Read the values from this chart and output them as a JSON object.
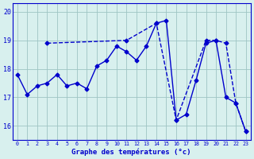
{
  "xlabel": "Graphe des températures (°c)",
  "hours": [
    0,
    1,
    2,
    3,
    4,
    5,
    6,
    7,
    8,
    9,
    10,
    11,
    12,
    13,
    14,
    15,
    16,
    17,
    18,
    19,
    20,
    21,
    22,
    23
  ],
  "line1_x": [
    0,
    1,
    2,
    3,
    4,
    5,
    6,
    7,
    8,
    9,
    10,
    11,
    12,
    13,
    14,
    15,
    16,
    17,
    18,
    19,
    20,
    21,
    22,
    23
  ],
  "line1_y": [
    17.8,
    17.1,
    17.4,
    17.5,
    17.8,
    17.4,
    17.5,
    17.3,
    18.1,
    18.3,
    18.8,
    18.6,
    18.3,
    18.8,
    19.6,
    19.7,
    16.2,
    16.4,
    17.6,
    18.9,
    19.0,
    17.0,
    16.8,
    15.8
  ],
  "line2_x": [
    3,
    11,
    14,
    16,
    19,
    20,
    21,
    22,
    23
  ],
  "line2_y": [
    18.9,
    19.0,
    19.6,
    16.2,
    19.0,
    19.0,
    18.9,
    16.8,
    15.8
  ],
  "line_color": "#0000cc",
  "bg_color": "#d8f0ee",
  "grid_color": "#9ec4c4",
  "ylim": [
    15.5,
    20.3
  ],
  "yticks": [
    16,
    17,
    18,
    19,
    20
  ],
  "xlim": [
    -0.5,
    23.5
  ],
  "marker_size": 2.5,
  "line_width": 1.0
}
